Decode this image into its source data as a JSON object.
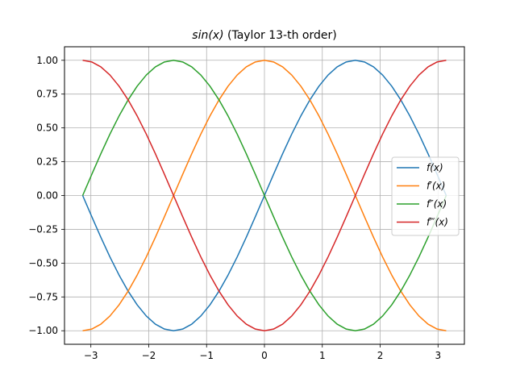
{
  "chart_data": {
    "type": "line",
    "title_math": "sin(x)",
    "title_rest": " (Taylor 13-th order)",
    "xlabel": "",
    "ylabel": "",
    "xlim": [
      -3.4557,
      3.4557
    ],
    "ylim": [
      -1.1,
      1.1
    ],
    "xticks": [
      -3,
      -2,
      -1,
      0,
      1,
      2,
      3
    ],
    "xtick_labels": [
      "−3",
      "−2",
      "−1",
      "0",
      "1",
      "2",
      "3"
    ],
    "yticks": [
      -1.0,
      -0.75,
      -0.5,
      -0.25,
      0.0,
      0.25,
      0.5,
      0.75,
      1.0
    ],
    "ytick_labels": [
      "−1.00",
      "−0.75",
      "−0.50",
      "−0.25",
      "0.00",
      "0.25",
      "0.50",
      "0.75",
      "1.00"
    ],
    "grid": true,
    "legend_position": "right",
    "x": [
      -3.1416,
      -2.9845,
      -2.8274,
      -2.6704,
      -2.5133,
      -2.3562,
      -2.1991,
      -2.042,
      -1.885,
      -1.7279,
      -1.5708,
      -1.4137,
      -1.2566,
      -1.0996,
      -0.9425,
      -0.7854,
      -0.6283,
      -0.4712,
      -0.3142,
      -0.1571,
      0.0,
      0.1571,
      0.3142,
      0.4712,
      0.6283,
      0.7854,
      0.9425,
      1.0996,
      1.2566,
      1.4137,
      1.5708,
      1.7279,
      1.885,
      2.042,
      2.1991,
      2.3562,
      2.5133,
      2.6704,
      2.8274,
      2.9845,
      3.1416
    ],
    "series": [
      {
        "name": "f(x)",
        "color": "#1f77b4",
        "values": [
          0.0,
          -0.1564,
          -0.309,
          -0.454,
          -0.5878,
          -0.7071,
          -0.809,
          -0.891,
          -0.9511,
          -0.9877,
          -1.0,
          -0.9877,
          -0.9511,
          -0.891,
          -0.809,
          -0.7071,
          -0.5878,
          -0.454,
          -0.309,
          -0.1564,
          0.0,
          0.1564,
          0.309,
          0.454,
          0.5878,
          0.7071,
          0.809,
          0.891,
          0.9511,
          0.9877,
          1.0,
          0.9877,
          0.9511,
          0.891,
          0.809,
          0.7071,
          0.5878,
          0.454,
          0.309,
          0.1564,
          0.0
        ]
      },
      {
        "name": "f′(x)",
        "color": "#ff7f0e",
        "values": [
          -1.0,
          -0.9877,
          -0.9511,
          -0.891,
          -0.809,
          -0.7071,
          -0.5878,
          -0.454,
          -0.309,
          -0.1564,
          0.0,
          0.1564,
          0.309,
          0.454,
          0.5878,
          0.7071,
          0.809,
          0.891,
          0.9511,
          0.9877,
          1.0,
          0.9877,
          0.9511,
          0.891,
          0.809,
          0.7071,
          0.5878,
          0.454,
          0.309,
          0.1564,
          0.0,
          -0.1564,
          -0.309,
          -0.454,
          -0.5878,
          -0.7071,
          -0.809,
          -0.891,
          -0.9511,
          -0.9877,
          -1.0
        ]
      },
      {
        "name": "f″(x)",
        "color": "#2ca02c",
        "values": [
          0.0,
          0.1564,
          0.309,
          0.454,
          0.5878,
          0.7071,
          0.809,
          0.891,
          0.9511,
          0.9877,
          1.0,
          0.9877,
          0.9511,
          0.891,
          0.809,
          0.7071,
          0.5878,
          0.454,
          0.309,
          0.1564,
          0.0,
          -0.1564,
          -0.309,
          -0.454,
          -0.5878,
          -0.7071,
          -0.809,
          -0.891,
          -0.9511,
          -0.9877,
          -1.0,
          -0.9877,
          -0.9511,
          -0.891,
          -0.809,
          -0.7071,
          -0.5878,
          -0.454,
          -0.309,
          -0.1564,
          0.0
        ]
      },
      {
        "name": "f‴(x)",
        "color": "#d62728",
        "values": [
          1.0,
          0.9877,
          0.9511,
          0.891,
          0.809,
          0.7071,
          0.5878,
          0.454,
          0.309,
          0.1564,
          0.0,
          -0.1564,
          -0.309,
          -0.454,
          -0.5878,
          -0.7071,
          -0.809,
          -0.891,
          -0.9511,
          -0.9877,
          -1.0,
          -0.9877,
          -0.9511,
          -0.891,
          -0.809,
          -0.7071,
          -0.5878,
          -0.454,
          -0.309,
          -0.1564,
          0.0,
          0.1564,
          0.309,
          0.454,
          0.5878,
          0.7071,
          0.809,
          0.891,
          0.9511,
          0.9877,
          1.0
        ]
      }
    ],
    "colors": {
      "grid": "#b0b0b0",
      "axes": "#000000",
      "legend_border": "#cccccc"
    }
  }
}
